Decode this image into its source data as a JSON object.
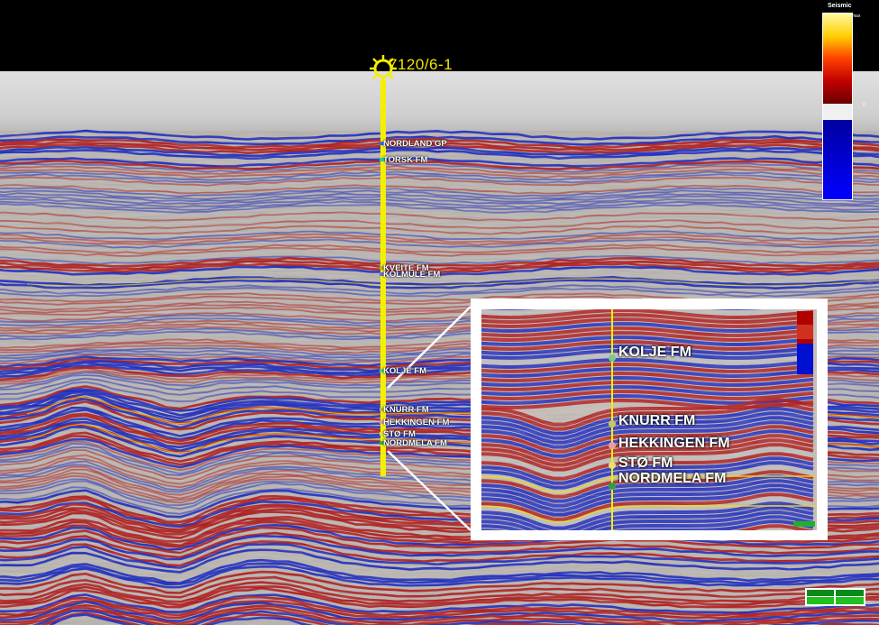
{
  "well": {
    "name": "7120/6-1",
    "icon": "well-location-icon",
    "color": "#f4f000"
  },
  "formation_tops": [
    {
      "name": "NORDLAND GP",
      "marker_color": "#2a6cff"
    },
    {
      "name": "TORSK FM",
      "marker_color": "#1fd3a0"
    },
    {
      "name": "KVEITE FM",
      "marker_color": "#b0b020"
    },
    {
      "name": "KOLMULE FM",
      "marker_color": "#6a70d0"
    },
    {
      "name": "KOLJE FM",
      "marker_color": "#4fd07a"
    },
    {
      "name": "KNURR FM",
      "marker_color": "#b6c040"
    },
    {
      "name": "HEKKINGEN FM",
      "marker_color": "#e0a0a0"
    },
    {
      "name": "STØ FM",
      "marker_color": "#e0e040"
    },
    {
      "name": "NORDMELA FM",
      "marker_color": "#30b040"
    }
  ],
  "inset": {
    "formation_tops": [
      {
        "name": "KOLJE FM",
        "marker_color": "#7ec88a"
      },
      {
        "name": "KNURR FM",
        "marker_color": "#c8c860"
      },
      {
        "name": "HEKKINGEN FM",
        "marker_color": "#e6a0a0"
      },
      {
        "name": "STØ FM",
        "marker_color": "#e8e070"
      },
      {
        "name": "NORDMELA FM",
        "marker_color": "#2fa040"
      }
    ]
  },
  "colorbar": {
    "title": "Seismic",
    "max_label": "max",
    "zero_label": "0",
    "colors": [
      "#fff8a0",
      "#ffd000",
      "#ff4000",
      "#c00000",
      "#6a0000",
      "#ffffff",
      "#0000a0",
      "#0000ff"
    ]
  },
  "colors": {
    "background": "#000000",
    "water_column": "#c8c8c8",
    "positive": "#b01010",
    "negative": "#1020c0",
    "neutral": "#c0c0c0"
  }
}
